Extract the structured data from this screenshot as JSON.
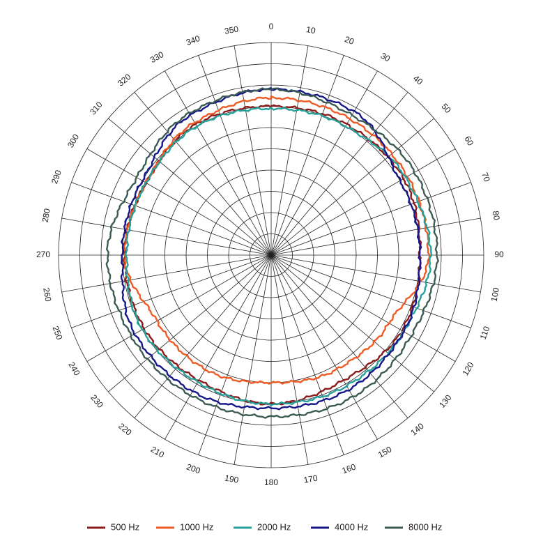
{
  "chart_data": {
    "type": "polar-line",
    "angle_ticks": [
      "0",
      "10",
      "20",
      "30",
      "40",
      "50",
      "60",
      "70",
      "80",
      "90",
      "100",
      "110",
      "120",
      "130",
      "140",
      "150",
      "160",
      "170",
      "180",
      "190",
      "200",
      "210",
      "220",
      "230",
      "240",
      "250",
      "260",
      "270",
      "280",
      "290",
      "300",
      "310",
      "320",
      "330",
      "340",
      "350"
    ],
    "radial_rings": 10,
    "radial_max": 1.0,
    "grid": true,
    "legend_position": "bottom",
    "theta": [
      0,
      30,
      60,
      90,
      120,
      150,
      180,
      210,
      240,
      270,
      300,
      330
    ],
    "series": [
      {
        "name": "500 Hz",
        "color": "#8b1a1a",
        "r": [
          0.7,
          0.71,
          0.72,
          0.7,
          0.71,
          0.68,
          0.7,
          0.68,
          0.69,
          0.69,
          0.68,
          0.71
        ]
      },
      {
        "name": "1000 Hz",
        "color": "#ee5a24",
        "r": [
          0.74,
          0.74,
          0.74,
          0.74,
          0.64,
          0.62,
          0.6,
          0.62,
          0.62,
          0.69,
          0.68,
          0.72
        ]
      },
      {
        "name": "2000 Hz",
        "color": "#26a09a",
        "r": [
          0.69,
          0.7,
          0.73,
          0.75,
          0.72,
          0.71,
          0.7,
          0.69,
          0.7,
          0.68,
          0.68,
          0.7
        ]
      },
      {
        "name": "4000 Hz",
        "color": "#14168a",
        "r": [
          0.78,
          0.78,
          0.7,
          0.7,
          0.72,
          0.73,
          0.72,
          0.74,
          0.74,
          0.7,
          0.7,
          0.76
        ]
      },
      {
        "name": "8000 Hz",
        "color": "#3c5a54",
        "r": [
          0.78,
          0.76,
          0.78,
          0.78,
          0.76,
          0.77,
          0.76,
          0.76,
          0.76,
          0.77,
          0.73,
          0.77
        ]
      }
    ]
  }
}
